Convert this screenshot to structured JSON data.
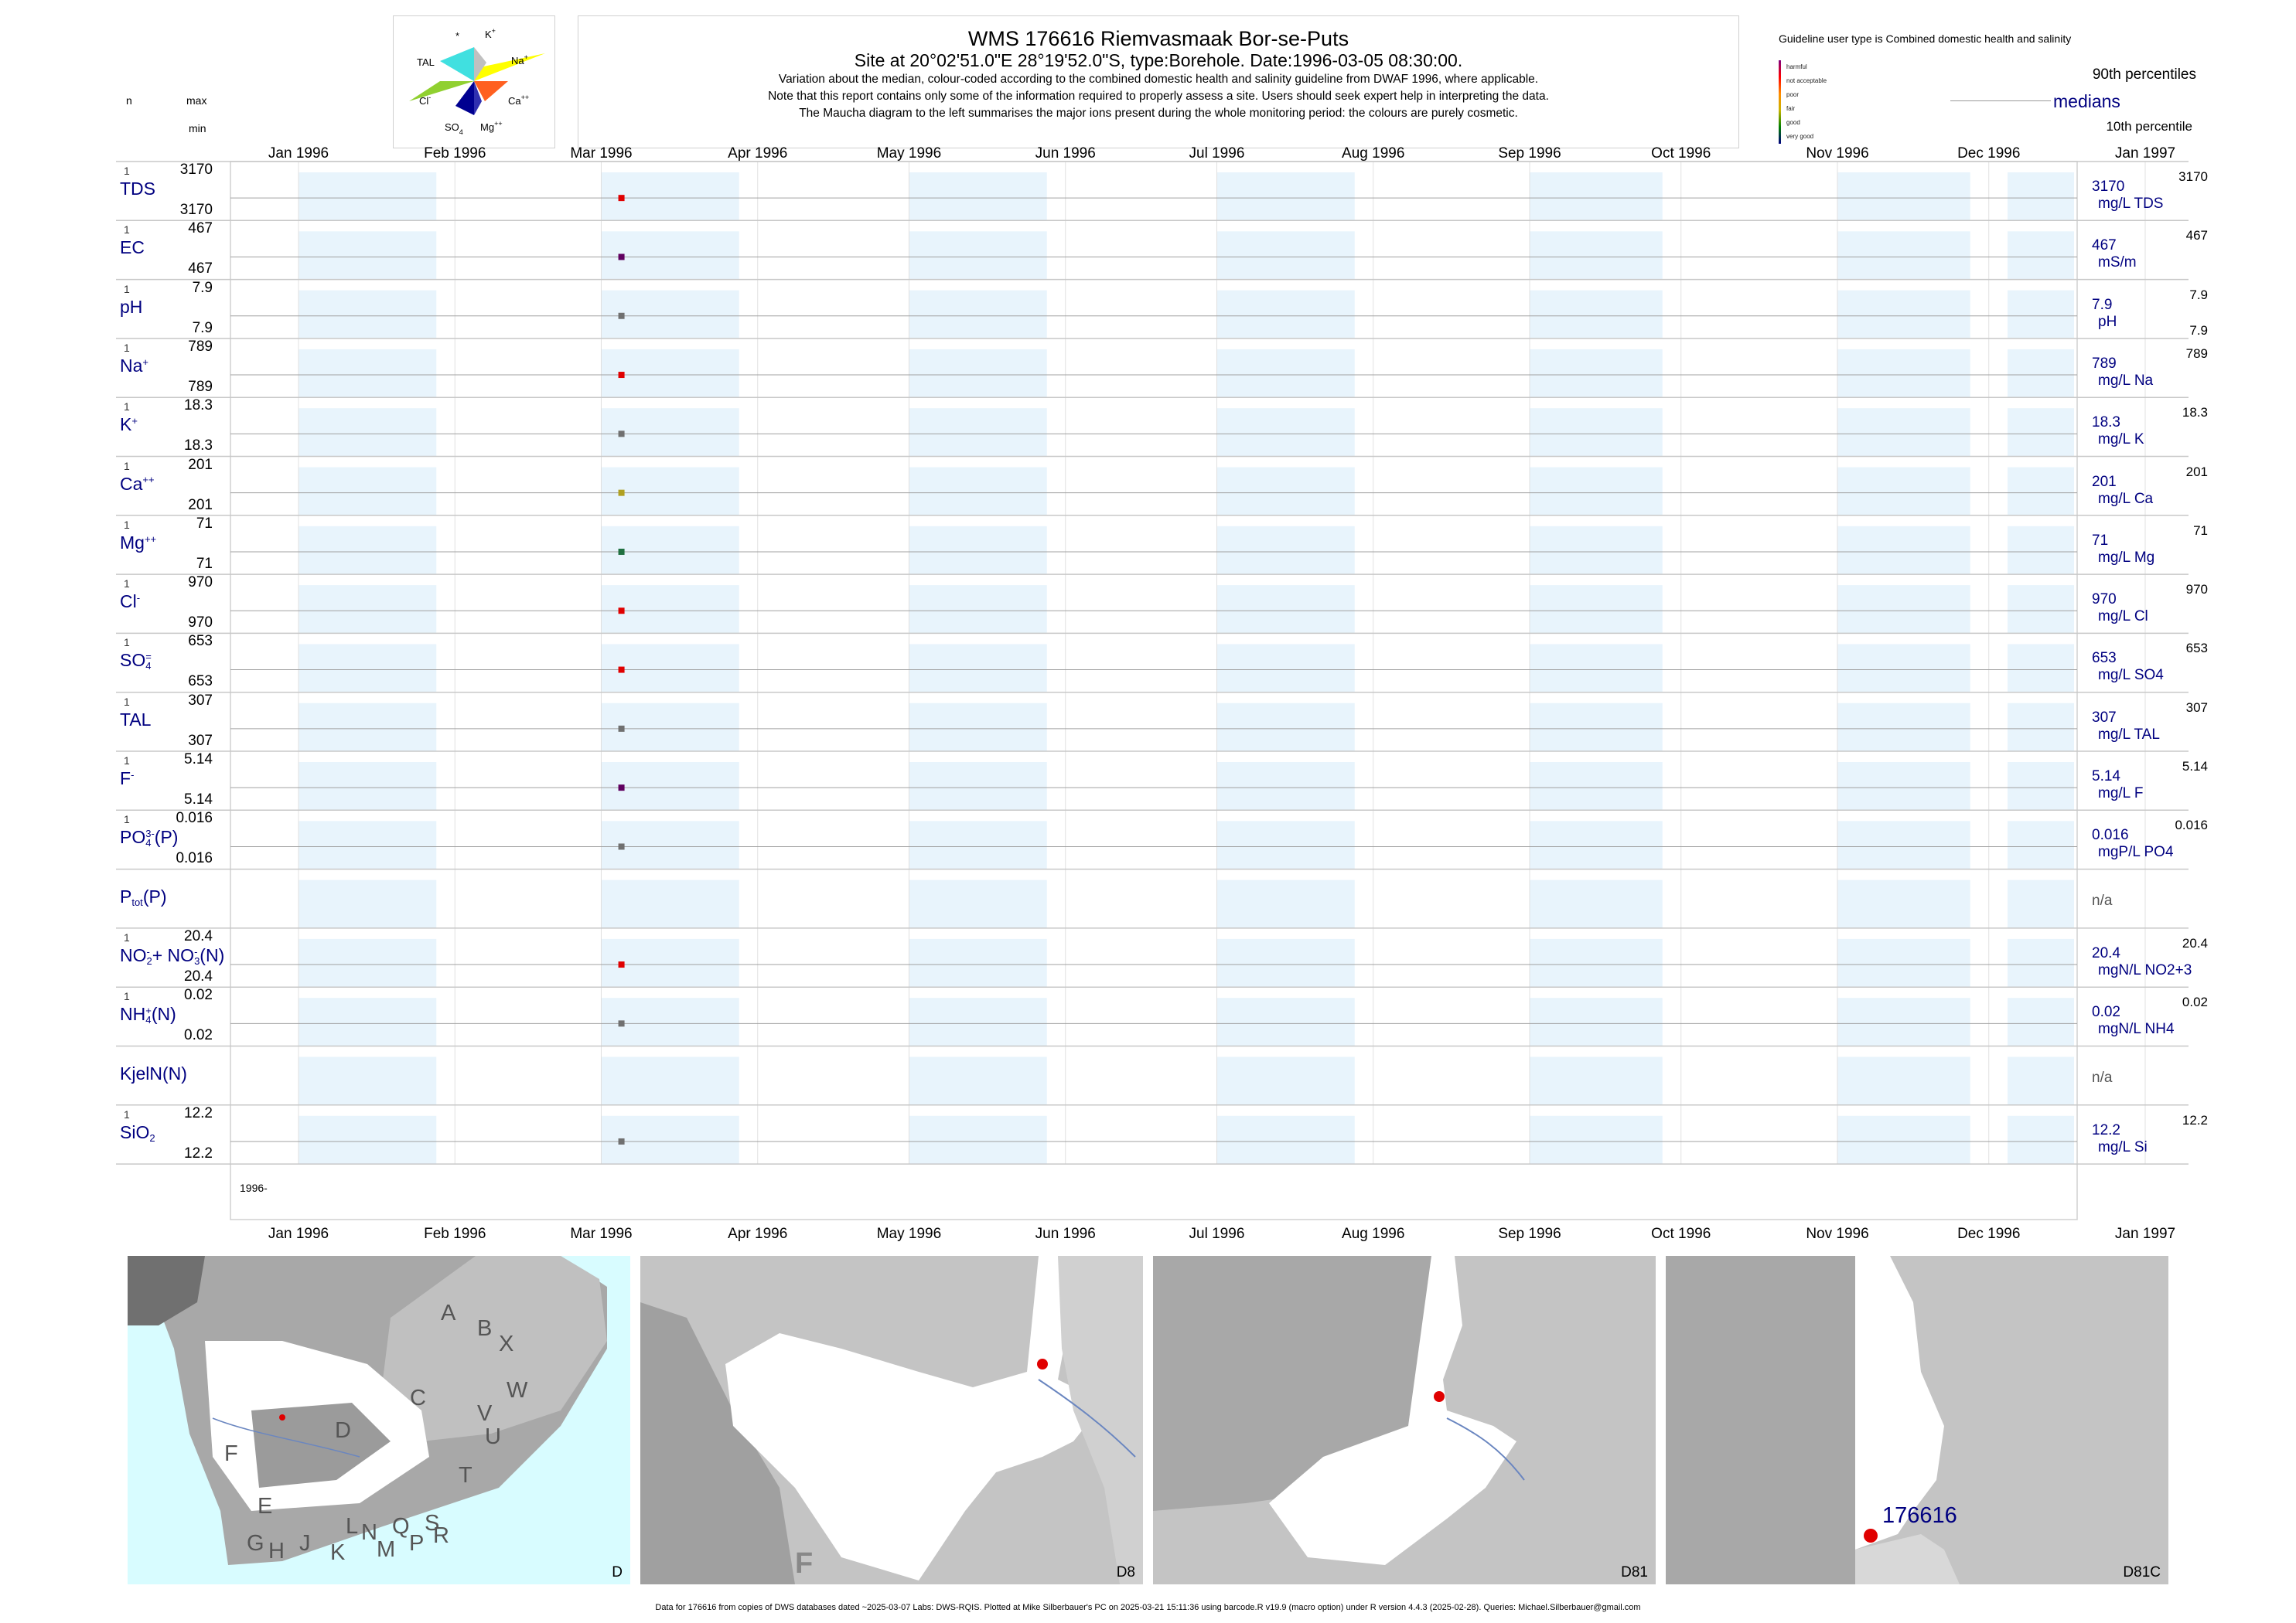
{
  "maucha": {
    "labels": {
      "star": "*",
      "k": "K",
      "k_sup": "+",
      "na": "Na",
      "na_sup": "+",
      "tal": "TAL",
      "cl": "Cl",
      "cl_sup": "-",
      "ca": "Ca",
      "ca_sup": "++",
      "so4": "SO",
      "so4_sub": "4",
      "so4_sup": "=",
      "mg": "Mg",
      "mg_sup": "++"
    },
    "colors": {
      "tal": "#40e0e0",
      "na": "#ffff00",
      "k": "#c0c0c0",
      "cl": "#90d030",
      "ca": "#ff6020",
      "so4": "#000090",
      "mg": "#3030b0"
    }
  },
  "title": {
    "line1": "WMS 176616  Riemvasmaak Bor-se-Puts",
    "line2": "Site at 20°02'51.0\"E 28°19'52.0\"S, type:Borehole. Date:1996-03-05 08:30:00.",
    "line3": "Variation about the median,  colour-coded according to the combined domestic health and salinity guideline from DWAF 1996, where applicable.",
    "line4": "Note that this report contains only some of the information required to properly assess a site. Users should seek expert help in interpreting the data.",
    "line5": "The Maucha diagram to the left summarises the major ions present during the whole monitoring period: the colours are purely cosmetic."
  },
  "legend": {
    "guideline_title": "Guideline user type is Combined domestic health and salinity",
    "classes": [
      {
        "label": "harmful",
        "color": "#800080"
      },
      {
        "label": "not acceptable",
        "color": "#ff0000"
      },
      {
        "label": "poor",
        "color": "#ff8c00"
      },
      {
        "label": "fair",
        "color": "#c8b400"
      },
      {
        "label": "good",
        "color": "#008000"
      },
      {
        "label": "very good",
        "color": "#000080"
      }
    ],
    "p90": "90th percentiles",
    "medians": "medians",
    "p10": "10th percentile"
  },
  "header": {
    "n": "n",
    "max": "max",
    "min": "min"
  },
  "chart_data": {
    "type": "scatter",
    "x_axis": {
      "ticks": [
        "Jan 1996",
        "Feb 1996",
        "Mar 1996",
        "Apr 1996",
        "May 1996",
        "Jun 1996",
        "Jul 1996",
        "Aug 1996",
        "Sep 1996",
        "Oct 1996",
        "Nov 1996",
        "Dec 1996",
        "Jan 1997"
      ],
      "range": [
        "1996-01-01",
        "1997-01-01"
      ],
      "year_label": "1996-"
    },
    "sample_date": "1996-03-05",
    "series": [
      {
        "name": "TDS",
        "n": "1",
        "max": "3170",
        "min": "3170",
        "value": "3170",
        "unit": "mg/L TDS",
        "p90": "3170",
        "color": "#e00000"
      },
      {
        "name": "EC",
        "n": "1",
        "max": "467",
        "min": "467",
        "value": "467",
        "unit": "mS/m",
        "p90": "467",
        "color": "#600060"
      },
      {
        "name": "pH",
        "n": "1",
        "max": "7.9",
        "min": "7.9",
        "value": "7.9",
        "unit": "pH",
        "p90": "7.9",
        "p10": "7.9",
        "color": "#707070"
      },
      {
        "name": "Na",
        "sup": "+",
        "n": "1",
        "max": "789",
        "min": "789",
        "value": "789",
        "unit": "mg/L Na",
        "p90": "789",
        "color": "#e00000"
      },
      {
        "name": "K",
        "sup": "+",
        "n": "1",
        "max": "18.3",
        "min": "18.3",
        "value": "18.3",
        "unit": "mg/L K",
        "p90": "18.3",
        "color": "#707070"
      },
      {
        "name": "Ca",
        "sup": "++",
        "n": "1",
        "max": "201",
        "min": "201",
        "value": "201",
        "unit": "mg/L Ca",
        "p90": "201",
        "color": "#b0a020"
      },
      {
        "name": "Mg",
        "sup": "++",
        "n": "1",
        "max": "71",
        "min": "71",
        "value": "71",
        "unit": "mg/L Mg",
        "p90": "71",
        "color": "#207040"
      },
      {
        "name": "Cl",
        "sup": "-",
        "n": "1",
        "max": "970",
        "min": "970",
        "value": "970",
        "unit": "mg/L Cl",
        "p90": "970",
        "color": "#e00000"
      },
      {
        "name": "SO",
        "sub": "4",
        "sup": "=",
        "n": "1",
        "max": "653",
        "min": "653",
        "value": "653",
        "unit": "mg/L SO4",
        "p90": "653",
        "color": "#e00000"
      },
      {
        "name": "TAL",
        "n": "1",
        "max": "307",
        "min": "307",
        "value": "307",
        "unit": "mg/L TAL",
        "p90": "307",
        "color": "#707070"
      },
      {
        "name": "F",
        "sup": "-",
        "n": "1",
        "max": "5.14",
        "min": "5.14",
        "value": "5.14",
        "unit": "mg/L F",
        "p90": "5.14",
        "color": "#600060"
      },
      {
        "name": "PO",
        "sub": "4",
        "sup": "3-",
        "suffix": "(P)",
        "n": "1",
        "max": "0.016",
        "min": "0.016",
        "value": "0.016",
        "unit": "mgP/L PO4",
        "p90": "0.016",
        "color": "#707070"
      },
      {
        "name": "P",
        "sub": "tot",
        "suffix": "(P)",
        "value": "n/a"
      },
      {
        "name": "NO",
        "sub": "2",
        "sup": "-",
        "name2": "+ NO",
        "sub2": "3",
        "sup2": "-",
        "suffix": "(N)",
        "n": "1",
        "max": "20.4",
        "min": "20.4",
        "value": "20.4",
        "unit": "mgN/L NO2+3",
        "p90": "20.4",
        "color": "#e00000"
      },
      {
        "name": "NH",
        "sub": "4",
        "sup": "+",
        "suffix": "(N)",
        "n": "1",
        "max": "0.02",
        "min": "0.02",
        "value": "0.02",
        "unit": "mgN/L NH4",
        "p90": "0.02",
        "color": "#707070"
      },
      {
        "name": "KjelN(N)",
        "value": "n/a"
      },
      {
        "name": "SiO",
        "sub": "2",
        "n": "1",
        "max": "12.2",
        "min": "12.2",
        "value": "12.2",
        "unit": "mg/L Si",
        "p90": "12.2",
        "color": "#707070"
      }
    ]
  },
  "maps": [
    {
      "label": "D",
      "regions": [
        "A",
        "B",
        "X",
        "W",
        "C",
        "V",
        "U",
        "T",
        "D",
        "F",
        "E",
        "G",
        "H",
        "J",
        "K",
        "L",
        "N",
        "M",
        "Q",
        "P",
        "S",
        "R"
      ]
    },
    {
      "label": "D8",
      "regions": [
        "F"
      ]
    },
    {
      "label": "D81",
      "regions": []
    },
    {
      "label": "D81C",
      "site": "176616"
    }
  ],
  "footer": "Data for 176616 from copies of DWS databases dated ~2025-03-07 Labs: DWS-RQIS. Plotted at Mike Silberbauer's PC on 2025-03-21 15:11:36 using barcode.R v19.9 (macro option) under R version 4.4.3 (2025-02-28). Queries: Michael.Silberbauer@gmail.com"
}
